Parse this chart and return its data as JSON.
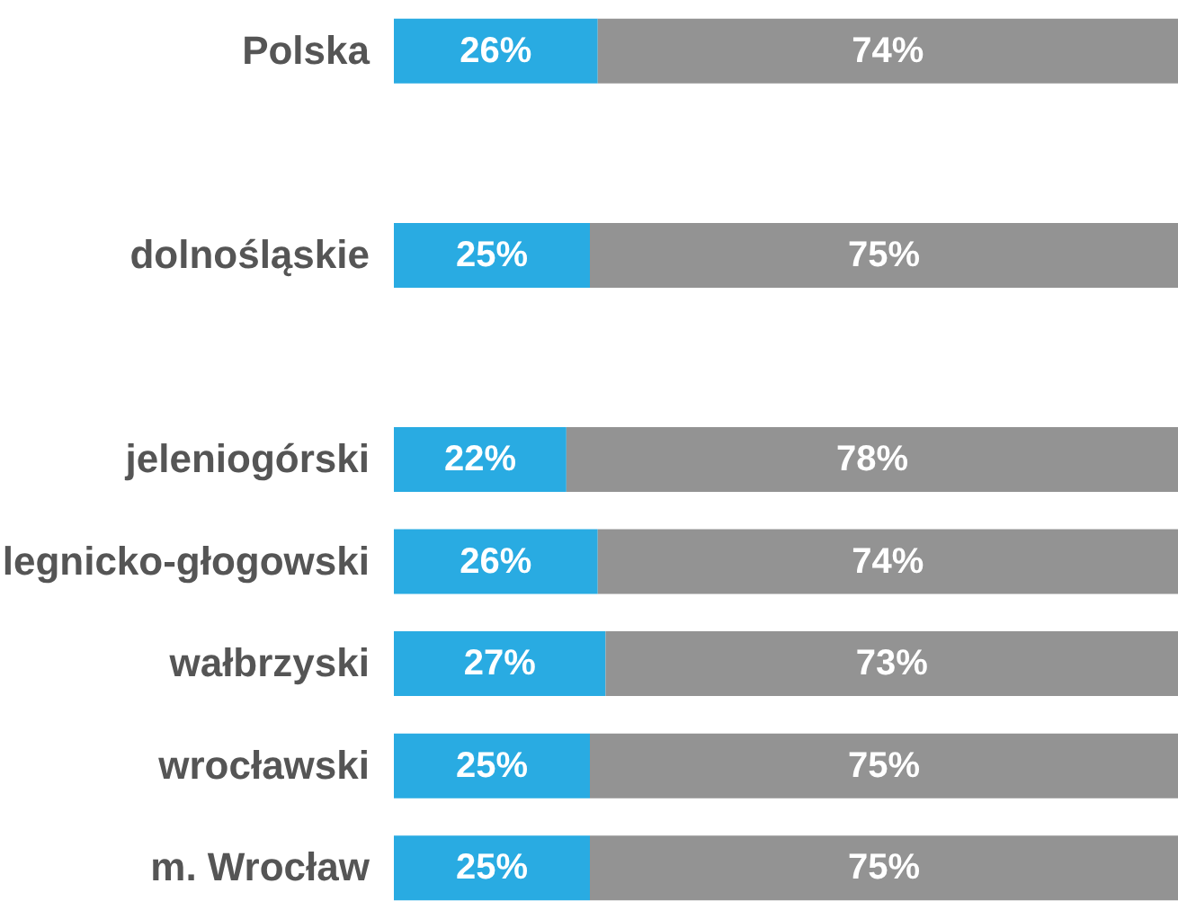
{
  "chart_data": {
    "type": "bar",
    "orientation": "horizontal",
    "stacked": true,
    "grid": false,
    "categories": [
      "Polska",
      null,
      "dolnośląskie",
      null,
      "jeleniogórski",
      "legnicko-głogowski",
      "wałbrzyski",
      "wrocławski",
      "m. Wrocław"
    ],
    "series": [
      {
        "color": "#29abe2",
        "values": [
          26,
          null,
          25,
          null,
          22,
          26,
          27,
          25,
          25
        ],
        "value_labels": [
          "26%",
          null,
          "25%",
          null,
          "22%",
          "26%",
          "27%",
          "25%",
          "25%"
        ]
      },
      {
        "color": "#939393",
        "values": [
          74,
          null,
          75,
          null,
          78,
          74,
          73,
          75,
          75
        ],
        "value_labels": [
          "74%",
          null,
          "75%",
          null,
          "78%",
          "74%",
          "73%",
          "75%",
          "75%"
        ]
      }
    ]
  }
}
